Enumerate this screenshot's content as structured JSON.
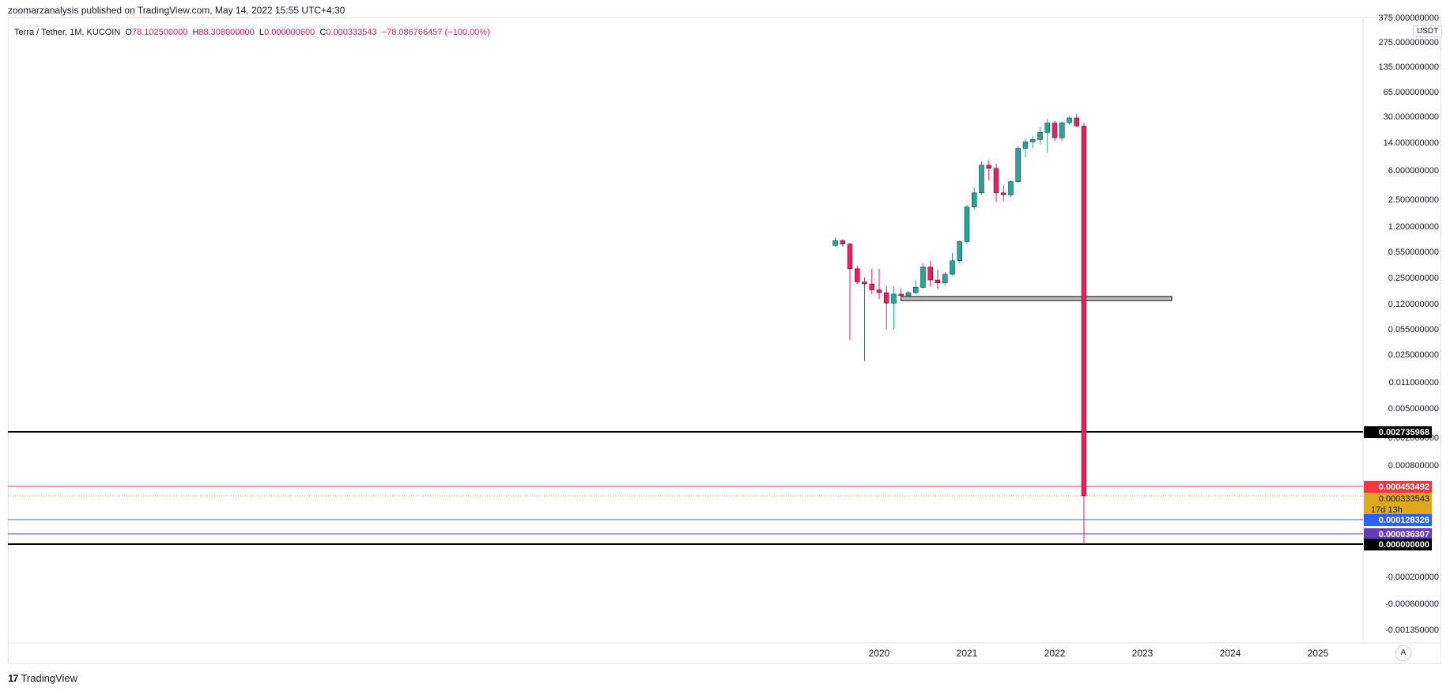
{
  "header": {
    "publish_text": "zoomarzanalysis published on TradingView.com, May 14, 2022 15:55 UTC+4:30"
  },
  "legend": {
    "symbol": "Terra / Tether, 1M, KUCOIN",
    "open_label": "O",
    "open": "78.102500000",
    "high_label": "H",
    "high": "88.308000000",
    "low_label": "L",
    "low": "0.000000600",
    "close_label": "C",
    "close": "0.000333543",
    "change": "−78.086766457 (−100.00%)"
  },
  "currency": "USDT",
  "footer": {
    "logo_mark": "17",
    "logo_text": "TradingView"
  },
  "auto_scale_label": "A",
  "colors": {
    "up": "#26a69a",
    "down": "#e91e63",
    "red_line": "#f23645",
    "blue_line": "#2962ff",
    "purple_line": "#673ab7",
    "black_line": "#000000",
    "current": "#e0a81b",
    "grid_text": "#131722"
  },
  "chart_data": {
    "type": "candlestick",
    "title": "Terra / Tether, 1M, KUCOIN",
    "y_scale": "log",
    "ylabel": "USDT",
    "x_tick_labels": [
      "2020",
      "2021",
      "2022",
      "2023",
      "2024",
      "2025"
    ],
    "y_tick_labels": [
      "375.000000000",
      "275.000000000",
      "135.000000000",
      "65.000000000",
      "30.000000000",
      "14.000000000",
      "6.000000000",
      "2.500000000",
      "1.200000000",
      "0.550000000",
      "0.250000000",
      "0.120000000",
      "0.055000000",
      "0.025000000",
      "0.011000000",
      "0.005000000",
      "0.002000000",
      "0.000800000",
      "0.000200000",
      "-0.000200000",
      "-0.000600000",
      "-0.001350000"
    ],
    "price_labels": [
      {
        "value": "0.002735968",
        "color": "black"
      },
      {
        "value": "0.000453492",
        "color": "red"
      },
      {
        "value": "0.000333543",
        "color": "current",
        "sub": "17d 13h"
      },
      {
        "value": "0.000128326",
        "color": "blue"
      },
      {
        "value": "0.000036307",
        "color": "purple"
      },
      {
        "value": "0.000000000",
        "color": "black"
      }
    ],
    "horizontal_lines": [
      {
        "value": 0.002735968,
        "color": "black"
      },
      {
        "value": 0.000453492,
        "color": "red"
      },
      {
        "value": 0.000333543,
        "color": "current",
        "style": "dotted"
      },
      {
        "value": 0.000128326,
        "color": "blue"
      },
      {
        "value": 3.6307e-05,
        "color": "purple"
      },
      {
        "value": 0.0,
        "color": "black"
      }
    ],
    "zone": {
      "from": "2020-04",
      "to": "2023-05",
      "low": 0.15,
      "high": 0.165
    },
    "candles": [
      {
        "t": "2019-07",
        "o": 1.05,
        "h": 1.4,
        "l": 0.98,
        "c": 1.25
      },
      {
        "t": "2019-08",
        "o": 1.25,
        "h": 1.3,
        "l": 1.0,
        "c": 1.1
      },
      {
        "t": "2019-09",
        "o": 1.1,
        "h": 1.15,
        "l": 0.09,
        "c": 0.45
      },
      {
        "t": "2019-10",
        "o": 0.45,
        "h": 0.5,
        "l": 0.26,
        "c": 0.28
      },
      {
        "t": "2019-11",
        "o": 0.28,
        "h": 0.33,
        "l": 0.07,
        "c": 0.26
      },
      {
        "t": "2019-12",
        "o": 0.26,
        "h": 0.45,
        "l": 0.18,
        "c": 0.21
      },
      {
        "t": "2020-01",
        "o": 0.21,
        "h": 0.45,
        "l": 0.15,
        "c": 0.19
      },
      {
        "t": "2020-02",
        "o": 0.19,
        "h": 0.24,
        "l": 0.1,
        "c": 0.13
      },
      {
        "t": "2020-03",
        "o": 0.13,
        "h": 0.24,
        "l": 0.1,
        "c": 0.18
      },
      {
        "t": "2020-04",
        "o": 0.18,
        "h": 0.22,
        "l": 0.15,
        "c": 0.17
      },
      {
        "t": "2020-05",
        "o": 0.17,
        "h": 0.2,
        "l": 0.16,
        "c": 0.19
      },
      {
        "t": "2020-06",
        "o": 0.19,
        "h": 0.3,
        "l": 0.18,
        "c": 0.23
      },
      {
        "t": "2020-07",
        "o": 0.23,
        "h": 0.55,
        "l": 0.22,
        "c": 0.48
      },
      {
        "t": "2020-08",
        "o": 0.48,
        "h": 0.6,
        "l": 0.24,
        "c": 0.3
      },
      {
        "t": "2020-09",
        "o": 0.3,
        "h": 0.44,
        "l": 0.22,
        "c": 0.27
      },
      {
        "t": "2020-10",
        "o": 0.27,
        "h": 0.4,
        "l": 0.24,
        "c": 0.37
      },
      {
        "t": "2020-11",
        "o": 0.37,
        "h": 0.8,
        "l": 0.35,
        "c": 0.6
      },
      {
        "t": "2020-12",
        "o": 0.6,
        "h": 1.25,
        "l": 0.55,
        "c": 1.2
      },
      {
        "t": "2021-01",
        "o": 1.2,
        "h": 4.5,
        "l": 1.1,
        "c": 4.2
      },
      {
        "t": "2021-02",
        "o": 4.2,
        "h": 8.5,
        "l": 3.8,
        "c": 7.0
      },
      {
        "t": "2021-03",
        "o": 7.0,
        "h": 22.0,
        "l": 6.5,
        "c": 19.0
      },
      {
        "t": "2021-04",
        "o": 19.0,
        "h": 22.5,
        "l": 11.0,
        "c": 17.0
      },
      {
        "t": "2021-05",
        "o": 17.0,
        "h": 20.0,
        "l": 5.0,
        "c": 7.0
      },
      {
        "t": "2021-06",
        "o": 7.0,
        "h": 9.0,
        "l": 5.2,
        "c": 6.5
      },
      {
        "t": "2021-07",
        "o": 6.5,
        "h": 11.0,
        "l": 6.0,
        "c": 10.5
      },
      {
        "t": "2021-08",
        "o": 10.5,
        "h": 38.0,
        "l": 10.0,
        "c": 35.0
      },
      {
        "t": "2021-09",
        "o": 35.0,
        "h": 50.0,
        "l": 25.0,
        "c": 44.0
      },
      {
        "t": "2021-10",
        "o": 44.0,
        "h": 55.0,
        "l": 35.0,
        "c": 48.0
      },
      {
        "t": "2021-11",
        "o": 48.0,
        "h": 75.0,
        "l": 40.0,
        "c": 62.0
      },
      {
        "t": "2021-12",
        "o": 62.0,
        "h": 100.0,
        "l": 30.0,
        "c": 87.0
      },
      {
        "t": "2022-01",
        "o": 87.0,
        "h": 95.0,
        "l": 45.0,
        "c": 51.0
      },
      {
        "t": "2022-02",
        "o": 51.0,
        "h": 92.0,
        "l": 45.0,
        "c": 88.0
      },
      {
        "t": "2022-03",
        "o": 88.0,
        "h": 110.0,
        "l": 82.0,
        "c": 105.0
      },
      {
        "t": "2022-04",
        "o": 105.0,
        "h": 120.0,
        "l": 75.0,
        "c": 78.1
      },
      {
        "t": "2022-05",
        "o": 78.1025,
        "h": 88.308,
        "l": 6e-07,
        "c": 0.000333543
      }
    ]
  }
}
